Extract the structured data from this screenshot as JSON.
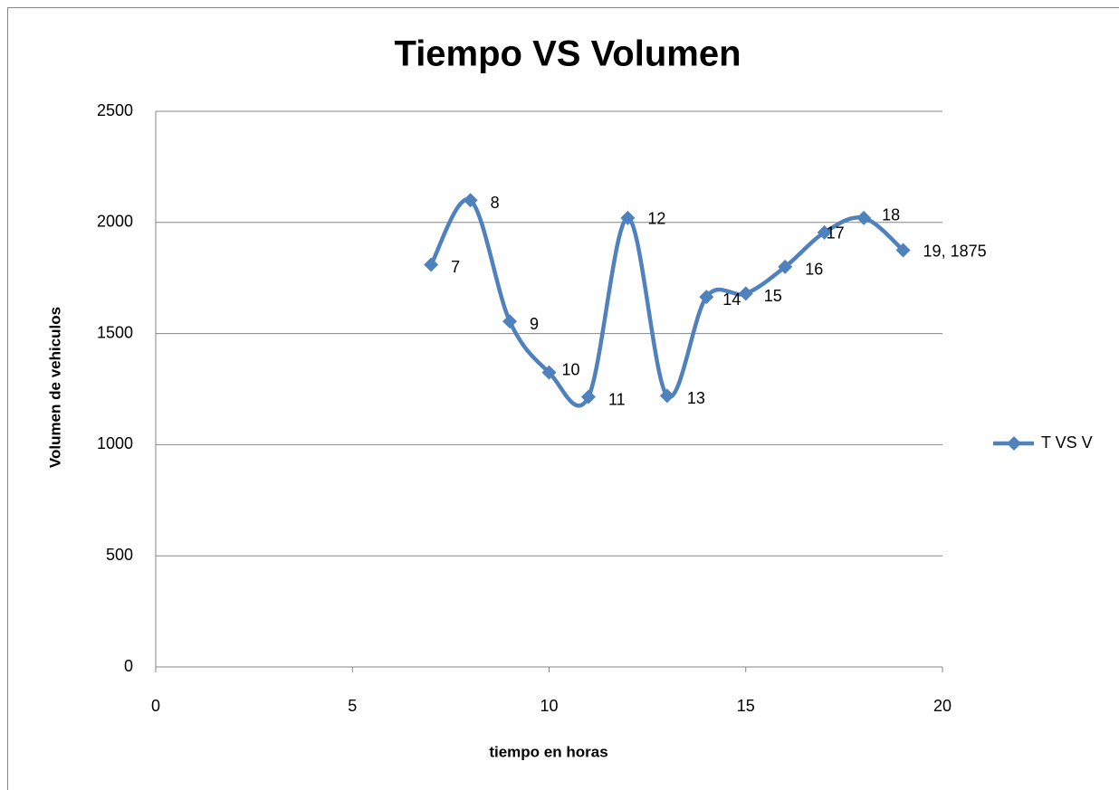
{
  "chart_data": {
    "type": "scatter",
    "smooth": true,
    "title": "Tiempo VS Volumen",
    "x_label": "tiempo en horas",
    "y_label": "Volumen de vehiculos",
    "x": [
      7,
      8,
      9,
      10,
      11,
      12,
      13,
      14,
      15,
      16,
      17,
      18,
      19
    ],
    "series": [
      {
        "name": "T VS V",
        "color": "#4f81bd",
        "values": [
          1810,
          2100,
          1555,
          1325,
          1215,
          2020,
          1220,
          1665,
          1680,
          1800,
          1955,
          2020,
          1875
        ],
        "value_labels": [
          "7",
          "8",
          "9",
          "10",
          "11",
          "12",
          "13",
          "14",
          "15",
          "16",
          "17",
          "18",
          "19, 1875"
        ]
      }
    ],
    "xlim": [
      0,
      20
    ],
    "xticks": [
      0,
      5,
      10,
      15,
      20
    ],
    "ylim": [
      0,
      2500
    ],
    "yticks": [
      0,
      500,
      1000,
      1500,
      2000,
      2500
    ],
    "grid": true,
    "legend": "right"
  }
}
